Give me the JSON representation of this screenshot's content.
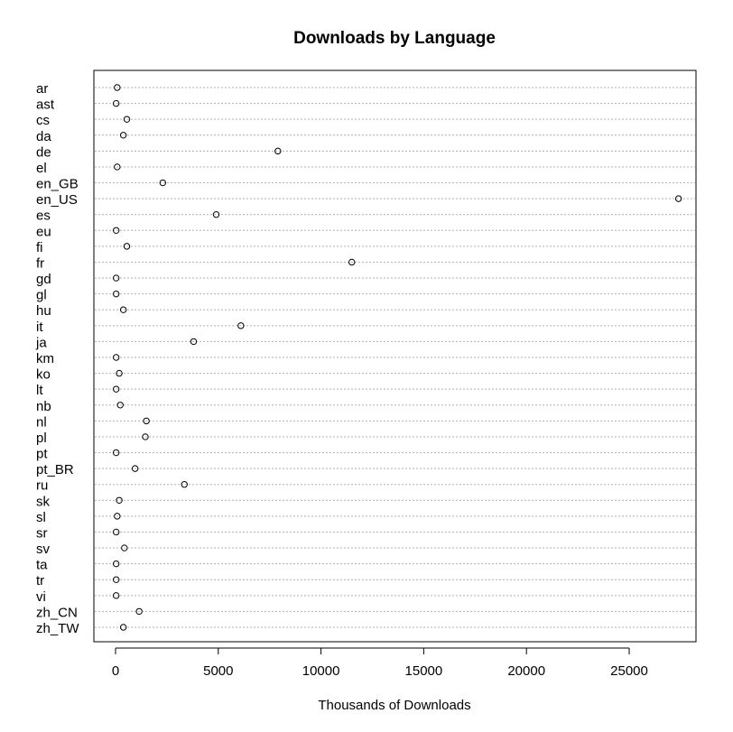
{
  "chart_data": {
    "type": "scatter",
    "title": "Downloads by Language",
    "xlabel": "Thousands of Downloads",
    "ylabel": "",
    "xlim": [
      -1000,
      28500
    ],
    "x_ticks": [
      0,
      5000,
      10000,
      15000,
      20000,
      25000
    ],
    "x_tick_labels": [
      "0",
      "5000",
      "10000",
      "15000",
      "20000",
      "25000"
    ],
    "grid": "dotted horizontal guides",
    "categories": [
      "ar",
      "ast",
      "cs",
      "da",
      "de",
      "el",
      "en_GB",
      "en_US",
      "es",
      "eu",
      "fi",
      "fr",
      "gd",
      "gl",
      "hu",
      "it",
      "ja",
      "km",
      "ko",
      "lt",
      "nb",
      "nl",
      "pl",
      "pt",
      "pt_BR",
      "ru",
      "sk",
      "sl",
      "sr",
      "sv",
      "ta",
      "tr",
      "vi",
      "zh_CN",
      "zh_TW"
    ],
    "values": [
      80,
      30,
      550,
      380,
      7900,
      80,
      2300,
      27400,
      4900,
      30,
      550,
      11500,
      30,
      30,
      380,
      6100,
      3800,
      30,
      180,
      30,
      230,
      1500,
      1450,
      30,
      950,
      3350,
      180,
      80,
      30,
      430,
      30,
      30,
      30,
      1150,
      380
    ]
  }
}
